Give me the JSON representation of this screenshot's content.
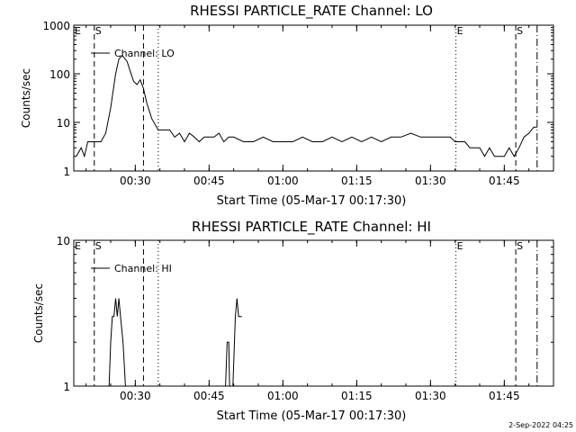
{
  "footer": {
    "timestamp": "2-Sep-2022 04:25"
  },
  "chart_data": [
    {
      "type": "line",
      "title": "RHESSI PARTICLE_RATE Channel: LO",
      "xlabel": "Start Time (05-Mar-17 00:17:30)",
      "ylabel": "Counts/sec",
      "y_scale": "log",
      "xlim": [
        "00:17:30",
        "01:55:00"
      ],
      "ylim": [
        1,
        1000
      ],
      "x_ticks": [
        "00:30",
        "00:45",
        "01:00",
        "01:15",
        "01:30",
        "01:45"
      ],
      "y_ticks": [
        "1",
        "10",
        "100",
        "1000"
      ],
      "legend": {
        "label": "Channel: LO",
        "placement": "top-left"
      },
      "markers": [
        {
          "time": "00:17:30",
          "style": "dotted",
          "label": "E"
        },
        {
          "time": "00:21:40",
          "style": "dashed",
          "label": "S"
        },
        {
          "time": "00:31:40",
          "style": "dashed",
          "label": ""
        },
        {
          "time": "00:34:40",
          "style": "dotted",
          "label": ""
        },
        {
          "time": "01:35:10",
          "style": "dotted",
          "label": "E"
        },
        {
          "time": "01:47:20",
          "style": "dashed",
          "label": "S"
        },
        {
          "time": "01:51:40",
          "style": "dashdot",
          "label": ""
        }
      ],
      "series": [
        {
          "name": "Channel: LO",
          "x": [
            "00:18:00",
            "00:19:00",
            "00:19:40",
            "00:20:20",
            "00:21:00",
            "00:22:00",
            "00:23:00",
            "00:24:00",
            "00:25:00",
            "00:26:00",
            "00:26:40",
            "00:27:20",
            "00:28:20",
            "00:29:00",
            "00:29:40",
            "00:30:20",
            "00:31:00",
            "00:31:40",
            "00:32:20",
            "00:33:20",
            "00:34:40",
            "00:36:00",
            "00:37:00",
            "00:38:00",
            "00:39:00",
            "00:40:00",
            "00:41:00",
            "00:42:00",
            "00:43:00",
            "00:44:00",
            "00:45:00",
            "00:46:00",
            "00:47:00",
            "00:48:00",
            "00:49:00",
            "00:50:00",
            "00:52:00",
            "00:54:00",
            "00:56:00",
            "00:58:00",
            "01:00:00",
            "01:02:00",
            "01:04:00",
            "01:06:00",
            "01:08:00",
            "01:10:00",
            "01:12:00",
            "01:14:00",
            "01:16:00",
            "01:18:00",
            "01:20:00",
            "01:22:00",
            "01:24:00",
            "01:26:00",
            "01:28:00",
            "01:30:00",
            "01:32:00",
            "01:34:00",
            "01:35:00",
            "01:36:00",
            "01:37:00",
            "01:38:00",
            "01:39:00",
            "01:40:00",
            "01:41:00",
            "01:42:00",
            "01:43:00",
            "01:44:00",
            "01:45:00",
            "01:46:00",
            "01:47:00",
            "01:48:00",
            "01:49:00",
            "01:50:00",
            "01:51:00",
            "01:51:40"
          ],
          "y": [
            2,
            3,
            2,
            4,
            4,
            4,
            4,
            6,
            20,
            100,
            200,
            240,
            180,
            110,
            70,
            60,
            75,
            50,
            25,
            12,
            7,
            7,
            7,
            5,
            6,
            4,
            6,
            5,
            4,
            5,
            5,
            5,
            6,
            4,
            5,
            5,
            4,
            4,
            5,
            4,
            4,
            4,
            5,
            4,
            4,
            5,
            4,
            5,
            4,
            5,
            4,
            5,
            5,
            6,
            5,
            5,
            5,
            5,
            4,
            4,
            4,
            3,
            3,
            3,
            2,
            3,
            2,
            2,
            2,
            3,
            2,
            3,
            5,
            6,
            8,
            8
          ]
        }
      ]
    },
    {
      "type": "line",
      "title": "RHESSI PARTICLE_RATE Channel: HI",
      "xlabel": "Start Time (05-Mar-17 00:17:30)",
      "ylabel": "Counts/sec",
      "y_scale": "log",
      "xlim": [
        "00:17:30",
        "01:55:00"
      ],
      "ylim": [
        1,
        10
      ],
      "x_ticks": [
        "00:30",
        "00:45",
        "01:00",
        "01:15",
        "01:30",
        "01:45"
      ],
      "y_ticks": [
        "1",
        "10"
      ],
      "legend": {
        "label": "Channel: HI",
        "placement": "top-left"
      },
      "markers": [
        {
          "time": "00:17:30",
          "style": "dotted",
          "label": "E"
        },
        {
          "time": "00:21:40",
          "style": "dashed",
          "label": "S"
        },
        {
          "time": "00:31:40",
          "style": "dashed",
          "label": ""
        },
        {
          "time": "00:34:40",
          "style": "dotted",
          "label": ""
        },
        {
          "time": "01:35:10",
          "style": "dotted",
          "label": "E"
        },
        {
          "time": "01:47:20",
          "style": "dashed",
          "label": "S"
        },
        {
          "time": "01:51:40",
          "style": "dashdot",
          "label": ""
        }
      ],
      "series": [
        {
          "name": "Channel: HI",
          "x": [
            "00:24:00",
            "00:24:40",
            "00:25:00",
            "00:25:20",
            "00:25:40",
            "00:26:00",
            "00:26:20",
            "00:26:40",
            "00:27:00",
            "00:27:30",
            "00:28:00",
            "00:28:10",
            "00:48:00",
            "00:48:20",
            "00:48:40",
            "00:49:00",
            "00:49:10",
            "00:49:30",
            "00:49:50",
            "00:50:20",
            "00:50:40",
            "00:51:00",
            "00:51:20",
            "00:51:40"
          ],
          "y": [
            1,
            1,
            2,
            3,
            3,
            4,
            3,
            4,
            3,
            2,
            1,
            1,
            1,
            1,
            2,
            2,
            1,
            1,
            1,
            3,
            4,
            3,
            3,
            3
          ]
        }
      ]
    }
  ]
}
